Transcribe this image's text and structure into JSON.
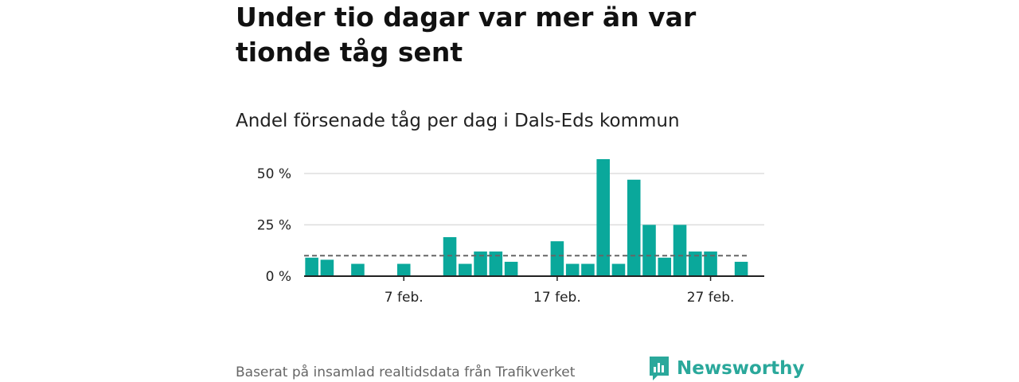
{
  "title": "Under tio dagar var mer än var tionde tåg sent",
  "subtitle": "Andel försenade tåg per dag i Dals-Eds kommun",
  "footer": "Baserat på insamlad realtidsdata från Trafikverket",
  "brand": "Newsworthy",
  "colors": {
    "bar": "#0aa89b",
    "reference_line": "#666666",
    "grid": "#dddddd",
    "axis": "#222222",
    "brand": "#2aa89b"
  },
  "chart_data": {
    "type": "bar",
    "title": "Under tio dagar var mer än var tionde tåg sent",
    "subtitle": "Andel försenade tåg per dag i Dals-Eds kommun",
    "xlabel": "",
    "ylabel": "",
    "x_range": [
      1,
      30
    ],
    "ylim": [
      0,
      57
    ],
    "y_ticks": [
      0,
      25,
      50
    ],
    "y_tick_labels": [
      "0 %",
      "25 %",
      "50 %"
    ],
    "x_ticks": [
      7,
      17,
      27
    ],
    "x_tick_labels": [
      "7 feb.",
      "17 feb.",
      "27 feb."
    ],
    "grid": true,
    "reference_line": {
      "value": 10,
      "style": "dashed"
    },
    "days": [
      1,
      2,
      3,
      4,
      5,
      6,
      7,
      8,
      9,
      10,
      11,
      12,
      13,
      14,
      15,
      16,
      17,
      18,
      19,
      20,
      21,
      22,
      23,
      24,
      25,
      26,
      27,
      28,
      29
    ],
    "values": [
      9,
      8,
      0,
      6,
      0,
      0,
      6,
      0,
      0,
      19,
      6,
      12,
      12,
      7,
      0,
      0,
      17,
      6,
      6,
      57,
      6,
      47,
      25,
      9,
      25,
      12,
      12,
      0,
      7
    ]
  }
}
